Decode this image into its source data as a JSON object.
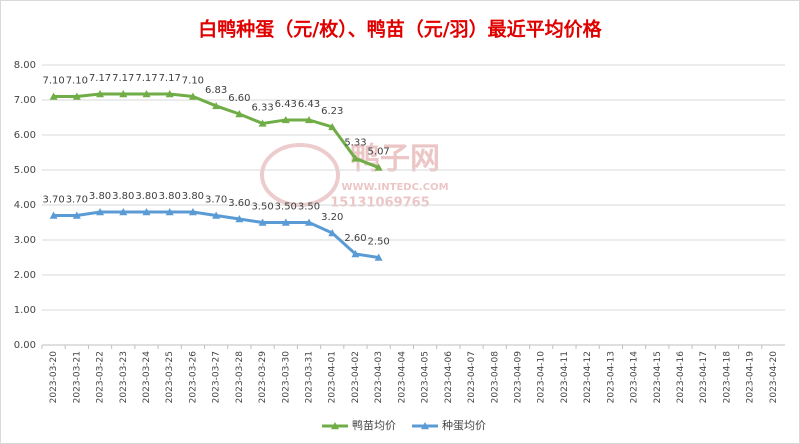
{
  "chart_data": {
    "type": "line",
    "title": "白鸭种蛋（元/枚）、鸭苗（元/羽）最近平均价格",
    "watermark": {
      "name": "鸭子网",
      "url": "WWW.INTEDC.COM",
      "phone": "15131069765"
    },
    "categories": [
      "2023-03-20",
      "2023-03-21",
      "2023-03-22",
      "2023-03-23",
      "2023-03-24",
      "2023-03-25",
      "2023-03-26",
      "2023-03-27",
      "2023-03-28",
      "2023-03-29",
      "2023-03-30",
      "2023-03-31",
      "2023-04-01",
      "2023-04-02",
      "2023-04-03",
      "2023-04-04",
      "2023-04-05",
      "2023-04-06",
      "2023-04-07",
      "2023-04-08",
      "2023-04-09",
      "2023-04-10",
      "2023-04-11",
      "2023-04-12",
      "2023-04-13",
      "2023-04-14",
      "2023-04-15",
      "2023-04-16",
      "2023-04-17",
      "2023-04-18",
      "2023-04-19",
      "2023-04-20"
    ],
    "series": [
      {
        "name": "鸭苗均价",
        "color": "#70ad47",
        "values": [
          7.1,
          7.1,
          7.17,
          7.17,
          7.17,
          7.17,
          7.1,
          6.83,
          6.6,
          6.33,
          6.43,
          6.43,
          6.23,
          5.33,
          5.07,
          null,
          null,
          null,
          null,
          null,
          null,
          null,
          null,
          null,
          null,
          null,
          null,
          null,
          null,
          null,
          null,
          null
        ],
        "value_labels": [
          "7.10",
          "7.10",
          "7.17",
          "7.17",
          "7.17",
          "7.17",
          "7.10",
          "6.83",
          "6.60",
          "6.33",
          "6.43",
          "6.43",
          "6.23",
          "5.33",
          "5.07",
          null,
          null,
          null,
          null,
          null,
          null,
          null,
          null,
          null,
          null,
          null,
          null,
          null,
          null,
          null,
          null,
          null
        ]
      },
      {
        "name": "种蛋均价",
        "color": "#5b9bd5",
        "values": [
          3.7,
          3.7,
          3.8,
          3.8,
          3.8,
          3.8,
          3.8,
          3.7,
          3.6,
          3.5,
          3.5,
          3.5,
          3.2,
          2.6,
          2.5,
          null,
          null,
          null,
          null,
          null,
          null,
          null,
          null,
          null,
          null,
          null,
          null,
          null,
          null,
          null,
          null,
          null
        ],
        "value_labels": [
          "3.70",
          "3.70",
          "3.80",
          "3.80",
          "3.80",
          "3.80",
          "3.80",
          "3.70",
          "3.60",
          "3.50",
          "3.50",
          "3.50",
          "3.20",
          "2.60",
          "2.50",
          null,
          null,
          null,
          null,
          null,
          null,
          null,
          null,
          null,
          null,
          null,
          null,
          null,
          null,
          null,
          null,
          null
        ]
      }
    ],
    "ylim": [
      0,
      8
    ],
    "yticks": [
      {
        "value": 0,
        "label": "0.00"
      },
      {
        "value": 1,
        "label": "1.00"
      },
      {
        "value": 2,
        "label": "2.00"
      },
      {
        "value": 3,
        "label": "3.00"
      },
      {
        "value": 4,
        "label": "4.00"
      },
      {
        "value": 5,
        "label": "5.00"
      },
      {
        "value": 6,
        "label": "6.00"
      },
      {
        "value": 7,
        "label": "7.00"
      },
      {
        "value": 8,
        "label": "8.00"
      }
    ],
    "grid": true,
    "legend": "bottom"
  }
}
